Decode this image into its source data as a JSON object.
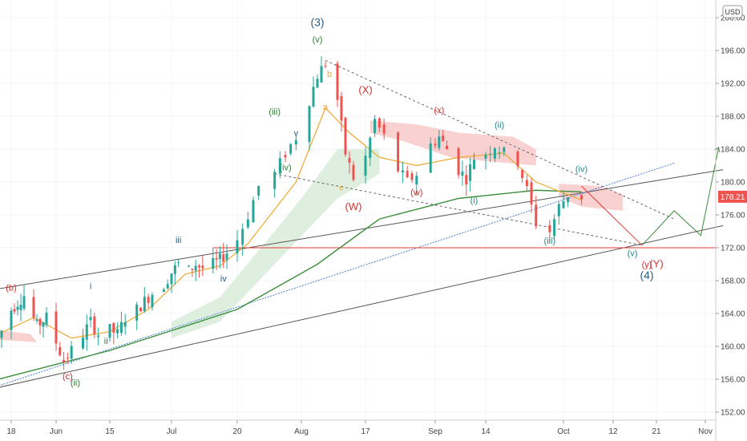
{
  "header": {
    "currency": "USD"
  },
  "price_tag": {
    "value": "178.21",
    "price": 178.21
  },
  "colors": {
    "up": "#26a69a",
    "down": "#ef5350",
    "price_tag": "#ef5350",
    "ema_fast": "#f0a830",
    "ema_slow": "#3c8f3c",
    "trend_blue": "#4a7fd4",
    "channel": "#555555",
    "projection": "#e53935",
    "projection_green": "#3c8f3c",
    "wedge": "#666666",
    "cloud": "#f7c5c5",
    "cloud_green": "#d4ead4",
    "red_label": "#d32f2f",
    "green_label": "#2e7d32",
    "teal_label": "#1f8a8a",
    "blue_label": "#2f5d80",
    "level_line": "#e53935"
  },
  "chart_data": {
    "type": "candlestick",
    "title": "",
    "y_ticks": [
      "152.00",
      "156.00",
      "160.00",
      "164.00",
      "168.00",
      "172.00",
      "176.00",
      "180.00",
      "184.00",
      "188.00",
      "192.00",
      "196.00",
      "200.00"
    ],
    "x_ticks": [
      "18",
      "Jun",
      "15",
      "Jul",
      "20",
      "Aug",
      "17",
      "Sep",
      "14",
      "Oct",
      "12",
      "21",
      "Nov"
    ],
    "ylim": [
      151,
      201
    ],
    "horizontal_level": 172.0,
    "price_path": [
      {
        "d": "May 14",
        "p": 161.0
      },
      {
        "d": "May 18",
        "p": 164.5
      },
      {
        "d": "May 22",
        "p": 166.2
      },
      {
        "d": "May 26",
        "p": 162.5
      },
      {
        "d": "May 29",
        "p": 163.5
      },
      {
        "d": "Jun 1",
        "p": 160.5
      },
      {
        "d": "Jun 3",
        "p": 158.2
      },
      {
        "d": "Jun 5",
        "p": 159.5
      },
      {
        "d": "Jun 8",
        "p": 161.5
      },
      {
        "d": "Jun 10",
        "p": 163.0
      },
      {
        "d": "Jun 12",
        "p": 161.5
      },
      {
        "d": "Jun 15",
        "p": 162.0
      },
      {
        "d": "Jun 17",
        "p": 161.5
      },
      {
        "d": "Jun 19",
        "p": 163.5
      },
      {
        "d": "Jun 22",
        "p": 164.5
      },
      {
        "d": "Jun 24",
        "p": 165.5
      },
      {
        "d": "Jun 26",
        "p": 166.5
      },
      {
        "d": "Jun 29",
        "p": 167.5
      },
      {
        "d": "Jul 1",
        "p": 169.0
      },
      {
        "d": "Jul 3",
        "p": 170.0
      },
      {
        "d": "Jul 6",
        "p": 169.2
      },
      {
        "d": "Jul 8",
        "p": 170.0
      },
      {
        "d": "Jul 10",
        "p": 169.5
      },
      {
        "d": "Jul 13",
        "p": 170.0
      },
      {
        "d": "Jul 15",
        "p": 170.5
      },
      {
        "d": "Jul 17",
        "p": 171.5
      },
      {
        "d": "Jul 20",
        "p": 173.0
      },
      {
        "d": "Jul 22",
        "p": 176.0
      },
      {
        "d": "Jul 24",
        "p": 179.5
      },
      {
        "d": "Jul 27",
        "p": 181.0
      },
      {
        "d": "Jul 29",
        "p": 183.5
      },
      {
        "d": "Jul 31",
        "p": 185.5
      },
      {
        "d": "Aug 3",
        "p": 190.0
      },
      {
        "d": "Aug 5",
        "p": 193.0
      },
      {
        "d": "Aug 7",
        "p": 194.5
      },
      {
        "d": "Aug 10",
        "p": 190.0
      },
      {
        "d": "Aug 12",
        "p": 183.5
      },
      {
        "d": "Aug 14",
        "p": 180.5
      },
      {
        "d": "Aug 17",
        "p": 183.0
      },
      {
        "d": "Aug 19",
        "p": 187.5
      },
      {
        "d": "Aug 21",
        "p": 185.5
      },
      {
        "d": "Aug 24",
        "p": 181.5
      },
      {
        "d": "Aug 26",
        "p": 180.0
      },
      {
        "d": "Aug 28",
        "p": 181.0
      },
      {
        "d": "Aug 31",
        "p": 184.5
      },
      {
        "d": "Sep 2",
        "p": 185.5
      },
      {
        "d": "Sep 4",
        "p": 184.0
      },
      {
        "d": "Sep 7",
        "p": 181.5
      },
      {
        "d": "Sep 9",
        "p": 180.5
      },
      {
        "d": "Sep 11",
        "p": 183.0
      },
      {
        "d": "Sep 14",
        "p": 183.5
      },
      {
        "d": "Sep 16",
        "p": 184.5
      },
      {
        "d": "Sep 18",
        "p": 183.5
      },
      {
        "d": "Sep 21",
        "p": 182.5
      },
      {
        "d": "Sep 23",
        "p": 179.0
      },
      {
        "d": "Sep 25",
        "p": 175.0
      },
      {
        "d": "Sep 28",
        "p": 174.0
      },
      {
        "d": "Sep 30",
        "p": 177.0
      },
      {
        "d": "Oct 2",
        "p": 178.5
      },
      {
        "d": "Oct 5",
        "p": 178.2
      }
    ],
    "ema_fast_path": [
      {
        "d": "May 14",
        "p": 161.5
      },
      {
        "d": "May 25",
        "p": 163.5
      },
      {
        "d": "Jun 5",
        "p": 161.0
      },
      {
        "d": "Jun 15",
        "p": 161.8
      },
      {
        "d": "Jun 25",
        "p": 164.5
      },
      {
        "d": "Jul 5",
        "p": 168.8
      },
      {
        "d": "Jul 15",
        "p": 169.8
      },
      {
        "d": "Jul 22",
        "p": 172.5
      },
      {
        "d": "Jul 31",
        "p": 180.0
      },
      {
        "d": "Aug 7",
        "p": 189.0
      },
      {
        "d": "Aug 13",
        "p": 186.0
      },
      {
        "d": "Aug 20",
        "p": 183.0
      },
      {
        "d": "Aug 28",
        "p": 182.0
      },
      {
        "d": "Sep 7",
        "p": 183.0
      },
      {
        "d": "Sep 18",
        "p": 183.5
      },
      {
        "d": "Sep 25",
        "p": 180.0
      },
      {
        "d": "Oct 5",
        "p": 177.8
      }
    ],
    "ema_slow_path": [
      {
        "d": "May 14",
        "p": 156.0
      },
      {
        "d": "Jun 15",
        "p": 159.5
      },
      {
        "d": "Jul 20",
        "p": 164.5
      },
      {
        "d": "Aug 5",
        "p": 170.0
      },
      {
        "d": "Aug 20",
        "p": 175.5
      },
      {
        "d": "Sep 7",
        "p": 178.0
      },
      {
        "d": "Sep 25",
        "p": 179.0
      },
      {
        "d": "Oct 5",
        "p": 178.8
      }
    ],
    "lines": [
      {
        "name": "upper-channel",
        "from": {
          "d": "May 14",
          "p": 167.0
        },
        "to": {
          "d": "Nov 5",
          "p": 181.5
        }
      },
      {
        "name": "lower-channel",
        "from": {
          "d": "May 14",
          "p": 155.0
        },
        "to": {
          "d": "Nov 5",
          "p": 174.7
        }
      },
      {
        "name": "blue-trend",
        "from": {
          "d": "May 14",
          "p": 155.2
        },
        "to": {
          "d": "Oct 25",
          "p": 182.3
        }
      },
      {
        "name": "wedge-top",
        "from": {
          "d": "Aug 7",
          "p": 194.8
        },
        "to": {
          "d": "Oct 25",
          "p": 175.5
        }
      },
      {
        "name": "wedge-bottom",
        "from": {
          "d": "Jul 27",
          "p": 181.0
        },
        "to": {
          "d": "Oct 18",
          "p": 172.3
        }
      }
    ],
    "projection": [
      {
        "d": "Oct 5",
        "p": 179.5
      },
      {
        "d": "Oct 18",
        "p": 172.3
      },
      {
        "d": "Oct 25",
        "p": 176.5
      },
      {
        "d": "Oct 31",
        "p": 173.5
      },
      {
        "d": "Nov 4",
        "p": 184.2
      }
    ],
    "wave_labels": [
      {
        "text": "(3)",
        "d": "Aug 5",
        "p": 199.0,
        "color": "blue_label",
        "size": 14
      },
      {
        "text": "(v)",
        "d": "Aug 5",
        "p": 197.0,
        "color": "green_label",
        "size": 11
      },
      {
        "text": "b",
        "d": "Aug 8",
        "p": 192.8,
        "color": "ema_fast",
        "size": 11
      },
      {
        "text": "a",
        "d": "Aug 7",
        "p": 188.8,
        "color": "ema_fast",
        "size": 11
      },
      {
        "text": "c",
        "d": "Aug 11",
        "p": 179.0,
        "color": "ema_fast",
        "size": 11
      },
      {
        "text": "(iii)",
        "d": "Jul 27",
        "p": 188.2,
        "color": "green_label",
        "size": 11
      },
      {
        "text": "v",
        "d": "Jul 31",
        "p": 185.6,
        "color": "blue_label",
        "size": 11
      },
      {
        "text": "(iv)",
        "d": "Jul 29",
        "p": 181.4,
        "color": "green_label",
        "size": 11
      },
      {
        "text": "(X)",
        "d": "Aug 17",
        "p": 190.8,
        "color": "red_label",
        "size": 13
      },
      {
        "text": "(W)",
        "d": "Aug 14",
        "p": 176.6,
        "color": "red_label",
        "size": 13
      },
      {
        "text": "(x)",
        "d": "Sep 2",
        "p": 188.4,
        "color": "red_label",
        "size": 11
      },
      {
        "text": "(w)",
        "d": "Aug 28",
        "p": 178.4,
        "color": "red_label",
        "size": 11
      },
      {
        "text": "(ii)",
        "d": "Sep 17",
        "p": 186.6,
        "color": "teal_label",
        "size": 11
      },
      {
        "text": "(i)",
        "d": "Sep 11",
        "p": 177.4,
        "color": "teal_label",
        "size": 11
      },
      {
        "text": "(iii)",
        "d": "Sep 28",
        "p": 172.5,
        "color": "teal_label",
        "size": 11
      },
      {
        "text": "(iv)",
        "d": "Oct 5",
        "p": 181.2,
        "color": "teal_label",
        "size": 11
      },
      {
        "text": "(v)",
        "d": "Oct 16",
        "p": 171.0,
        "color": "teal_label",
        "size": 11
      },
      {
        "text": "(y)",
        "d": "Oct 19",
        "p": 169.6,
        "color": "red_label",
        "size": 11
      },
      {
        "text": "(Y)",
        "d": "Oct 21",
        "p": 169.6,
        "color": "red_label",
        "size": 13
      },
      {
        "text": "(4)",
        "d": "Oct 19",
        "p": 168.2,
        "color": "blue_label",
        "size": 14
      },
      {
        "text": "iii",
        "d": "Jul 3",
        "p": 172.6,
        "color": "blue_label",
        "size": 11
      },
      {
        "text": "iv",
        "d": "Jul 16",
        "p": 167.9,
        "color": "blue_label",
        "size": 11
      },
      {
        "text": "i",
        "d": "Jun 10",
        "p": 167.0,
        "color": "blue_label",
        "size": 11
      },
      {
        "text": "ii",
        "d": "Jun 14",
        "p": 160.3,
        "color": "green_label",
        "size": 11
      },
      {
        "text": "(b)",
        "d": "May 18",
        "p": 166.8,
        "color": "red_label",
        "size": 11
      },
      {
        "text": "(c)",
        "d": "Jun 4",
        "p": 156.0,
        "color": "red_label",
        "size": 11
      },
      {
        "text": "(ii)",
        "d": "Jun 6",
        "p": 155.2,
        "color": "green_label",
        "size": 11
      }
    ]
  }
}
